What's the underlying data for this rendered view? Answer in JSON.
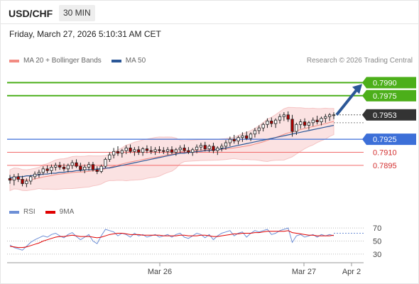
{
  "header": {
    "symbol": "USD/CHF",
    "timeframe": "30 MIN"
  },
  "datetime": "Friday, March 27, 2026 5:10:31 AM CET",
  "legend": {
    "bollinger_label": "MA 20 + Bollinger Bands",
    "bollinger_color": "#f28b82",
    "ma50_label": "MA 50",
    "ma50_color": "#2b5797"
  },
  "credit": "Research © 2026 Trading Central",
  "rsi_legend": {
    "rsi_label": "RSI",
    "rsi_color": "#6d8fd6",
    "ma9_label": "9MA",
    "ma9_color": "#e00000"
  },
  "colors": {
    "up_candle": "#ffffff",
    "down_candle": "#b00000",
    "resistance_line": "#4caf1a",
    "pivot_line": "#3c6fd8",
    "support_line": "#f26a6a",
    "arrow": "#2b5797",
    "bollinger_fill": "#fbe2e2",
    "current_price_badge": "#333333"
  },
  "chart_data": {
    "type": "candlestick",
    "symbol": "USD/CHF",
    "price_range": [
      0.7855,
      0.8005
    ],
    "levels": [
      {
        "value": 0.799,
        "label": "0.7990",
        "kind": "resistance"
      },
      {
        "value": 0.7975,
        "label": "0.7975",
        "kind": "resistance"
      },
      {
        "value": 0.7953,
        "label": "0.7953",
        "kind": "current"
      },
      {
        "value": 0.7925,
        "label": "0.7925",
        "kind": "pivot"
      },
      {
        "value": 0.791,
        "label": "0.7910",
        "kind": "support"
      },
      {
        "value": 0.7895,
        "label": "0.7895",
        "kind": "support"
      }
    ],
    "ohlc": [
      [
        0.788,
        0.7884,
        0.7874,
        0.7878
      ],
      [
        0.7878,
        0.7885,
        0.7872,
        0.7882
      ],
      [
        0.7882,
        0.7886,
        0.7876,
        0.7879
      ],
      [
        0.7879,
        0.7883,
        0.7871,
        0.7874
      ],
      [
        0.7874,
        0.788,
        0.787,
        0.7877
      ],
      [
        0.7877,
        0.7884,
        0.7873,
        0.7882
      ],
      [
        0.7882,
        0.7888,
        0.7879,
        0.7885
      ],
      [
        0.7885,
        0.789,
        0.7881,
        0.7887
      ],
      [
        0.7887,
        0.7894,
        0.7884,
        0.7891
      ],
      [
        0.7891,
        0.7895,
        0.7886,
        0.7889
      ],
      [
        0.7889,
        0.7896,
        0.7885,
        0.7893
      ],
      [
        0.7893,
        0.7898,
        0.7889,
        0.7895
      ],
      [
        0.7895,
        0.7899,
        0.789,
        0.7893
      ],
      [
        0.7893,
        0.7897,
        0.7888,
        0.7891
      ],
      [
        0.7891,
        0.7897,
        0.7887,
        0.7895
      ],
      [
        0.7895,
        0.7901,
        0.7891,
        0.7898
      ],
      [
        0.7898,
        0.7902,
        0.7892,
        0.7894
      ],
      [
        0.7894,
        0.7898,
        0.7888,
        0.789
      ],
      [
        0.789,
        0.7896,
        0.7886,
        0.7893
      ],
      [
        0.7893,
        0.7899,
        0.7889,
        0.7896
      ],
      [
        0.7896,
        0.7899,
        0.7888,
        0.789
      ],
      [
        0.789,
        0.7894,
        0.7885,
        0.7888
      ],
      [
        0.7888,
        0.7896,
        0.7886,
        0.7894
      ],
      [
        0.7894,
        0.7904,
        0.7892,
        0.7902
      ],
      [
        0.7902,
        0.791,
        0.7899,
        0.7907
      ],
      [
        0.7907,
        0.7915,
        0.7903,
        0.7911
      ],
      [
        0.7911,
        0.7917,
        0.7906,
        0.7909
      ],
      [
        0.7909,
        0.7914,
        0.7904,
        0.7912
      ],
      [
        0.7912,
        0.7918,
        0.7908,
        0.7915
      ],
      [
        0.7915,
        0.7919,
        0.7909,
        0.7911
      ],
      [
        0.7911,
        0.7916,
        0.7906,
        0.7913
      ],
      [
        0.7913,
        0.7917,
        0.7907,
        0.791
      ],
      [
        0.791,
        0.7916,
        0.7906,
        0.7914
      ],
      [
        0.7914,
        0.7918,
        0.7909,
        0.7912
      ],
      [
        0.7912,
        0.7917,
        0.7908,
        0.7911
      ],
      [
        0.7911,
        0.7916,
        0.7907,
        0.7913
      ],
      [
        0.7913,
        0.7917,
        0.7909,
        0.7912
      ],
      [
        0.7912,
        0.7916,
        0.7908,
        0.7911
      ],
      [
        0.7911,
        0.7916,
        0.7907,
        0.7913
      ],
      [
        0.7913,
        0.7917,
        0.7908,
        0.791
      ],
      [
        0.791,
        0.7915,
        0.7906,
        0.7913
      ],
      [
        0.7913,
        0.7918,
        0.7909,
        0.7915
      ],
      [
        0.7915,
        0.7919,
        0.791,
        0.7912
      ],
      [
        0.7912,
        0.7916,
        0.7908,
        0.791
      ],
      [
        0.791,
        0.7915,
        0.7906,
        0.7913
      ],
      [
        0.7913,
        0.7919,
        0.7909,
        0.7916
      ],
      [
        0.7916,
        0.7921,
        0.7912,
        0.7918
      ],
      [
        0.7918,
        0.7922,
        0.7911,
        0.7914
      ],
      [
        0.7914,
        0.7919,
        0.791,
        0.7917
      ],
      [
        0.7917,
        0.7921,
        0.7909,
        0.7912
      ],
      [
        0.7912,
        0.7917,
        0.7907,
        0.7915
      ],
      [
        0.7915,
        0.792,
        0.7911,
        0.7917
      ],
      [
        0.7917,
        0.7924,
        0.7913,
        0.7921
      ],
      [
        0.7921,
        0.7928,
        0.7917,
        0.7925
      ],
      [
        0.7925,
        0.793,
        0.792,
        0.7923
      ],
      [
        0.7923,
        0.7929,
        0.7919,
        0.7927
      ],
      [
        0.7927,
        0.7933,
        0.7922,
        0.7929
      ],
      [
        0.7929,
        0.7934,
        0.7924,
        0.7926
      ],
      [
        0.7926,
        0.7933,
        0.7923,
        0.7931
      ],
      [
        0.7931,
        0.7938,
        0.7927,
        0.7935
      ],
      [
        0.7935,
        0.7941,
        0.7931,
        0.7938
      ],
      [
        0.7938,
        0.7944,
        0.7934,
        0.7942
      ],
      [
        0.7942,
        0.7949,
        0.7938,
        0.7946
      ],
      [
        0.7946,
        0.795,
        0.7939,
        0.7943
      ],
      [
        0.7943,
        0.7949,
        0.7938,
        0.7947
      ],
      [
        0.7947,
        0.7954,
        0.7943,
        0.7951
      ],
      [
        0.7951,
        0.7956,
        0.7946,
        0.7953
      ],
      [
        0.7953,
        0.7957,
        0.7945,
        0.7948
      ],
      [
        0.7948,
        0.7953,
        0.7928,
        0.7934
      ],
      [
        0.7934,
        0.7944,
        0.793,
        0.7942
      ],
      [
        0.7942,
        0.7948,
        0.7937,
        0.7945
      ],
      [
        0.7945,
        0.7949,
        0.7938,
        0.7941
      ],
      [
        0.7941,
        0.7946,
        0.7936,
        0.7944
      ],
      [
        0.7944,
        0.795,
        0.794,
        0.7947
      ],
      [
        0.7947,
        0.7952,
        0.7942,
        0.7945
      ],
      [
        0.7945,
        0.7951,
        0.7941,
        0.7949
      ],
      [
        0.7949,
        0.7954,
        0.7944,
        0.7951
      ],
      [
        0.7951,
        0.7955,
        0.7946,
        0.7953
      ],
      [
        0.7953,
        0.7956,
        0.7948,
        0.7953
      ]
    ],
    "ma50": [
      0.7881,
      0.7881,
      0.7882,
      0.7882,
      0.7883,
      0.7883,
      0.7884,
      0.7884,
      0.7885,
      0.7885,
      0.7886,
      0.7886,
      0.7887,
      0.7887,
      0.7888,
      0.7888,
      0.7889,
      0.7889,
      0.789,
      0.789,
      0.789,
      0.7891,
      0.7891,
      0.7892,
      0.7892,
      0.7893,
      0.7894,
      0.7895,
      0.7896,
      0.7897,
      0.7898,
      0.7899,
      0.79,
      0.7901,
      0.7902,
      0.7903,
      0.7904,
      0.7905,
      0.7906,
      0.7907,
      0.7908,
      0.7909,
      0.7909,
      0.791,
      0.791,
      0.7911,
      0.7911,
      0.7912,
      0.7912,
      0.7913,
      0.7913,
      0.7914,
      0.7915,
      0.7916,
      0.7917,
      0.7918,
      0.7919,
      0.792,
      0.7921,
      0.7922,
      0.7923,
      0.7924,
      0.7925,
      0.7926,
      0.7927,
      0.7928,
      0.7929,
      0.793,
      0.7931,
      0.7932,
      0.7933,
      0.7934,
      0.7935,
      0.7936,
      0.7937,
      0.7938,
      0.7939,
      0.794,
      0.7941
    ],
    "rsi": {
      "levels": [
        70,
        50,
        30
      ],
      "range": [
        20,
        80
      ],
      "rsi": [
        44,
        40,
        38,
        36,
        42,
        48,
        52,
        55,
        58,
        56,
        60,
        62,
        58,
        55,
        60,
        63,
        57,
        52,
        56,
        60,
        50,
        46,
        58,
        68,
        66,
        64,
        58,
        62,
        60,
        56,
        62,
        58,
        60,
        56,
        58,
        60,
        56,
        58,
        60,
        56,
        60,
        62,
        56,
        54,
        58,
        62,
        60,
        55,
        60,
        52,
        58,
        62,
        64,
        66,
        58,
        62,
        64,
        56,
        62,
        66,
        64,
        66,
        68,
        60,
        62,
        66,
        68,
        70,
        48,
        58,
        60,
        56,
        58,
        60,
        56,
        60,
        58,
        60,
        58
      ],
      "ma9": [
        42,
        41,
        40,
        40,
        41,
        43,
        45,
        47,
        50,
        52,
        54,
        56,
        57,
        57,
        58,
        59,
        58,
        57,
        57,
        57,
        56,
        55,
        56,
        58,
        60,
        61,
        62,
        62,
        61,
        60,
        60,
        60,
        59,
        59,
        59,
        59,
        59,
        58,
        58,
        58,
        58,
        59,
        59,
        58,
        58,
        58,
        59,
        59,
        58,
        57,
        57,
        58,
        59,
        60,
        61,
        61,
        62,
        62,
        62,
        63,
        63,
        64,
        65,
        65,
        65,
        65,
        65,
        66,
        63,
        62,
        61,
        60,
        59,
        59,
        58,
        58,
        58,
        58,
        59
      ]
    },
    "x_ticks": [
      {
        "label": "Mar 26"
      },
      {
        "label": "Mar 27"
      },
      {
        "label": "Apr 2"
      }
    ],
    "rsi_ticks": [
      "70",
      "50",
      "30"
    ],
    "arrow": {
      "from": 0.7953,
      "to": 0.799
    }
  }
}
